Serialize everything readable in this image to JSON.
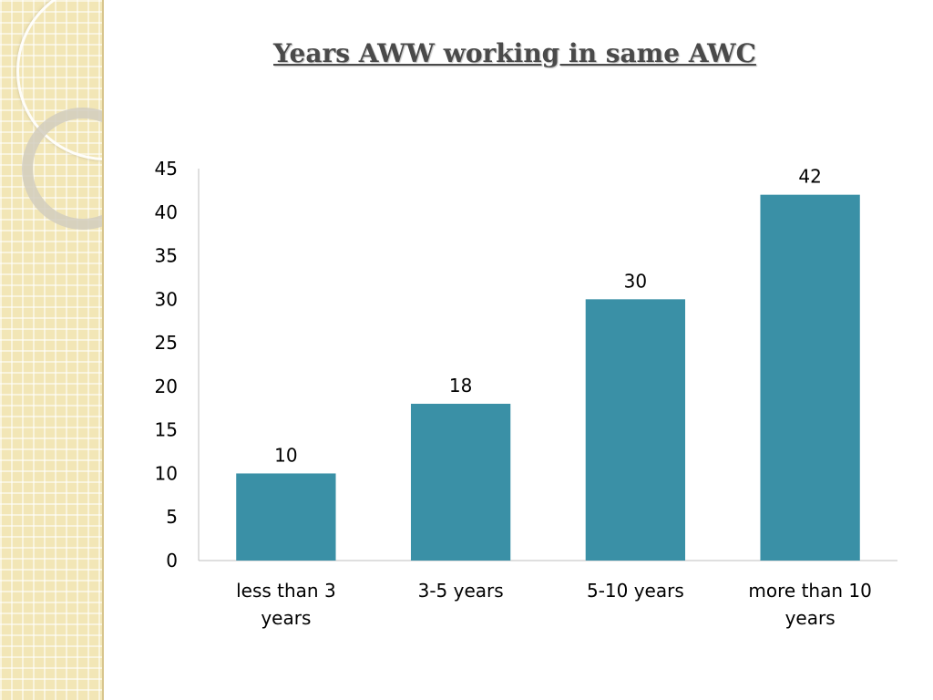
{
  "slide": {
    "title": "Years AWW working in same AWC"
  },
  "chart_data": {
    "type": "bar",
    "title": "Years AWW working in same AWC",
    "categories": [
      "less than 3 years",
      "3-5 years",
      "5-10 years",
      "more than 10 years"
    ],
    "values": [
      10,
      18,
      30,
      42
    ],
    "data_labels": [
      "10",
      "18",
      "30",
      "42"
    ],
    "xlabel": "",
    "ylabel": "",
    "ylim": [
      0,
      45
    ],
    "yticks": [
      "0",
      "5",
      "10",
      "15",
      "20",
      "25",
      "30",
      "35",
      "40",
      "45"
    ],
    "grid": false,
    "legend": "none",
    "bar_color": "#3a90a6"
  }
}
